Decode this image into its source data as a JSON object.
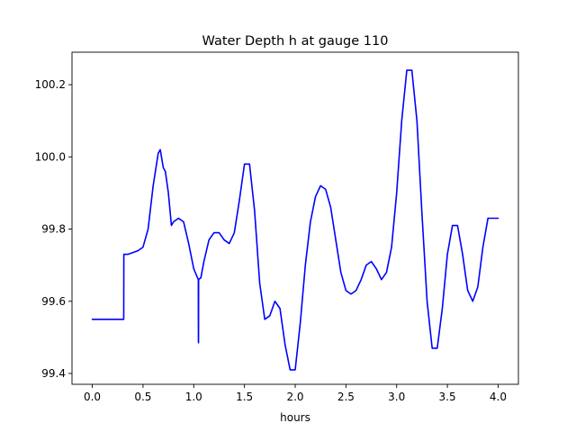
{
  "chart_data": {
    "type": "line",
    "title": "Water Depth h at gauge 110",
    "xlabel": "hours",
    "ylabel": "",
    "xlim": [
      -0.2,
      4.2
    ],
    "ylim": [
      99.37,
      100.29
    ],
    "xticks": [
      0.0,
      0.5,
      1.0,
      1.5,
      2.0,
      2.5,
      3.0,
      3.5,
      4.0
    ],
    "xtick_labels": [
      "0.0",
      "0.5",
      "1.0",
      "1.5",
      "2.0",
      "2.5",
      "3.0",
      "3.5",
      "4.0"
    ],
    "yticks": [
      99.4,
      99.6,
      99.8,
      100.0,
      100.2
    ],
    "ytick_labels": [
      "99.4",
      "99.6",
      "99.8",
      "100.0",
      "100.2"
    ],
    "grid": false,
    "series": [
      {
        "color": "#0000ff",
        "x": [
          0.0,
          0.31,
          0.311,
          0.35,
          0.4,
          0.45,
          0.5,
          0.55,
          0.6,
          0.65,
          0.67,
          0.7,
          0.72,
          0.75,
          0.78,
          0.8,
          0.85,
          0.9,
          0.95,
          1.0,
          1.03,
          1.045,
          1.046,
          1.047,
          1.048,
          1.07,
          1.1,
          1.15,
          1.2,
          1.25,
          1.3,
          1.35,
          1.4,
          1.45,
          1.5,
          1.55,
          1.6,
          1.65,
          1.7,
          1.75,
          1.8,
          1.85,
          1.9,
          1.95,
          2.0,
          2.05,
          2.1,
          2.15,
          2.2,
          2.25,
          2.3,
          2.35,
          2.4,
          2.45,
          2.5,
          2.55,
          2.6,
          2.65,
          2.7,
          2.75,
          2.8,
          2.85,
          2.9,
          2.95,
          3.0,
          3.05,
          3.1,
          3.15,
          3.2,
          3.25,
          3.3,
          3.35,
          3.4,
          3.45,
          3.5,
          3.55,
          3.6,
          3.65,
          3.7,
          3.75,
          3.8,
          3.85,
          3.9,
          3.95,
          4.0
        ],
        "y": [
          99.55,
          99.55,
          99.73,
          99.73,
          99.735,
          99.74,
          99.75,
          99.8,
          99.92,
          100.01,
          100.02,
          99.97,
          99.96,
          99.9,
          99.81,
          99.82,
          99.83,
          99.82,
          99.76,
          99.69,
          99.67,
          99.66,
          99.49,
          99.485,
          99.66,
          99.665,
          99.71,
          99.77,
          99.79,
          99.79,
          99.77,
          99.76,
          99.79,
          99.88,
          99.98,
          99.98,
          99.85,
          99.65,
          99.55,
          99.56,
          99.6,
          99.58,
          99.48,
          99.41,
          99.41,
          99.54,
          99.7,
          99.82,
          99.89,
          99.92,
          99.91,
          99.86,
          99.77,
          99.68,
          99.63,
          99.62,
          99.63,
          99.66,
          99.7,
          99.71,
          99.69,
          99.66,
          99.68,
          99.75,
          99.9,
          100.1,
          100.24,
          100.24,
          100.1,
          99.84,
          99.6,
          99.47,
          99.47,
          99.58,
          99.73,
          99.81,
          99.81,
          99.73,
          99.63,
          99.6,
          99.64,
          99.75,
          99.83,
          99.83,
          99.83
        ]
      }
    ]
  }
}
